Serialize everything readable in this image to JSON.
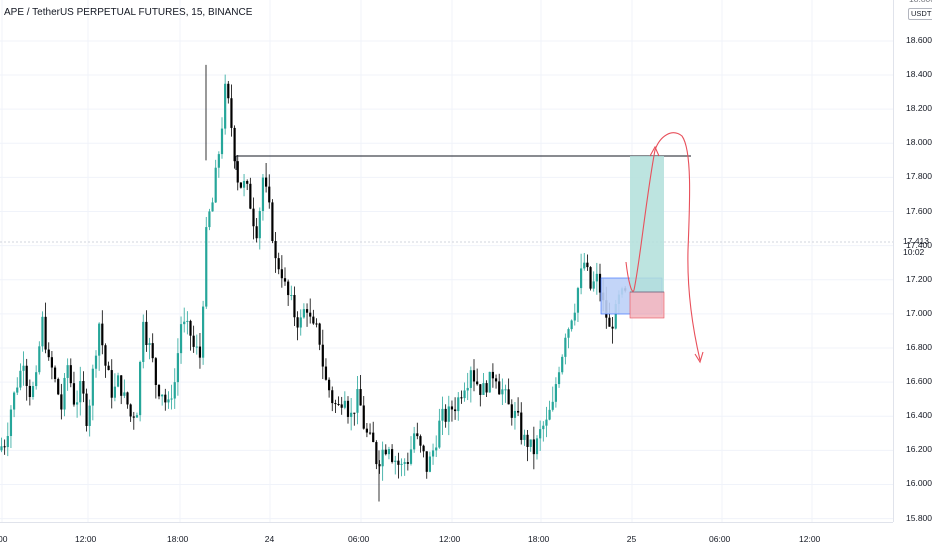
{
  "header": {
    "symbol_title": "APE / TetherUS PERPETUAL FUTURES, 15, BINANCE"
  },
  "price_axis": {
    "currency": "USDT",
    "labels": [
      "18.600",
      "18.400",
      "18.200",
      "18.000",
      "17.800",
      "17.600",
      "17.400",
      "17.200",
      "17.000",
      "16.800",
      "16.600",
      "16.400",
      "16.200",
      "16.000",
      "15.800"
    ],
    "top_clipped_label": "18.800",
    "last_price": "17.413",
    "countdown": "10:02"
  },
  "time_axis": {
    "labels": [
      "00",
      "12:00",
      "18:00",
      "24",
      "06:00",
      "12:00",
      "18:00",
      "25",
      "06:00",
      "12:00"
    ]
  },
  "colors": {
    "up": "#26a69a",
    "down": "#000000",
    "hline": "#131722",
    "drawing": "#e8505b",
    "target_zone": "#b2dfdb",
    "stop_zone": "#f4b8c0",
    "entry_zone": "#bcd0f7"
  },
  "chart_data": {
    "type": "candlestick",
    "timeframe": "15",
    "y_range": [
      15.78,
      18.84
    ],
    "x_ticks": [
      "00",
      "12:00",
      "18:00",
      "24",
      "06:00",
      "12:00",
      "18:00",
      "25",
      "06:00",
      "12:00"
    ],
    "ohlc_close_path": [
      16.25,
      16.45,
      16.6,
      16.75,
      16.55,
      16.6,
      16.95,
      16.7,
      16.6,
      16.45,
      16.7,
      16.5,
      16.55,
      16.4,
      16.65,
      16.95,
      16.7,
      16.55,
      16.6,
      16.5,
      16.4,
      16.45,
      17.0,
      16.8,
      16.6,
      16.55,
      16.45,
      16.6,
      16.95,
      16.9,
      16.8,
      16.75,
      17.45,
      17.65,
      17.95,
      18.3,
      18.1,
      17.8,
      17.75,
      17.65,
      17.5,
      17.8,
      17.6,
      17.3,
      17.25,
      17.1,
      17.0,
      16.95,
      17.05,
      16.9,
      16.85,
      16.6,
      16.5,
      16.45,
      16.55,
      16.4,
      16.5,
      16.35,
      16.25,
      16.15,
      16.2,
      16.25,
      16.15,
      16.1,
      16.15,
      16.3,
      16.2,
      16.1,
      16.2,
      16.35,
      16.4,
      16.45,
      16.5,
      16.6,
      16.7,
      16.6,
      16.55,
      16.6,
      16.65,
      16.55,
      16.45,
      16.4,
      16.3,
      16.25,
      16.2,
      16.3,
      16.35,
      16.45,
      16.7,
      16.9,
      17.0,
      17.15,
      17.3,
      17.15,
      17.2,
      17.05,
      16.9,
      17.0,
      17.1,
      17.05,
      17.15,
      17.4,
      17.6,
      17.7,
      17.55,
      17.4
    ],
    "horizontal_line": {
      "price": 17.91
    },
    "position_long": {
      "entry_zone": [
        17.0,
        17.2
      ],
      "stop_zone": [
        16.97,
        17.12
      ],
      "target_zone": [
        17.12,
        17.91
      ]
    },
    "last_price": 17.413
  }
}
